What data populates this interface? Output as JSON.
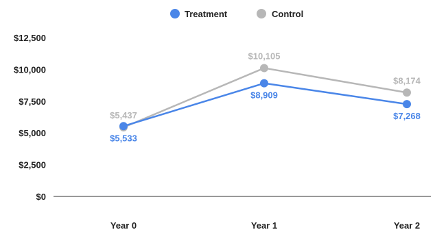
{
  "chart_data": {
    "type": "line",
    "categories": [
      "Year 0",
      "Year 1",
      "Year 2"
    ],
    "series": [
      {
        "name": "Treatment",
        "color": "#4a86e8",
        "values": [
          5533,
          8909,
          7268
        ],
        "labels": [
          "$5,533",
          "$8,909",
          "$7,268"
        ]
      },
      {
        "name": "Control",
        "color": "#b7b7b7",
        "values": [
          5437,
          10105,
          8174
        ],
        "labels": [
          "$5,437",
          "$10,105",
          "$8,174"
        ]
      }
    ],
    "ylim": [
      0,
      12500
    ],
    "yticks": [
      0,
      2500,
      5000,
      7500,
      10000,
      12500
    ],
    "ytick_labels": [
      "$0",
      "$2,500",
      "$5,000",
      "$7,500",
      "$10,000",
      "$12,500"
    ],
    "legend_position": "top",
    "grid": false
  }
}
